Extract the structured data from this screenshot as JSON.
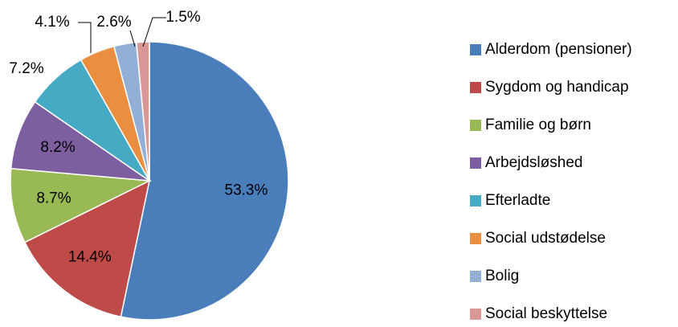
{
  "chart_data": {
    "type": "pie",
    "categories": [
      "Alderdom (pensioner)",
      "Sygdom og handicap",
      "Familie og børn",
      "Arbejdsløshed",
      "Efterladte",
      "Social udstødelse",
      "Bolig",
      "Social beskyttelse"
    ],
    "values": [
      53.3,
      14.4,
      8.7,
      8.2,
      7.2,
      4.1,
      2.6,
      1.5
    ],
    "value_labels": [
      "53.3%",
      "14.4%",
      "8.7%",
      "8.2%",
      "7.2%",
      "4.1%",
      "2.6%",
      "1.5%"
    ],
    "colors": [
      "#4a7ebb",
      "#be4b48",
      "#98b954",
      "#7d5fa0",
      "#46aac5",
      "#e98f3f",
      "#94afd6",
      "#d99795"
    ],
    "legend": "right"
  }
}
